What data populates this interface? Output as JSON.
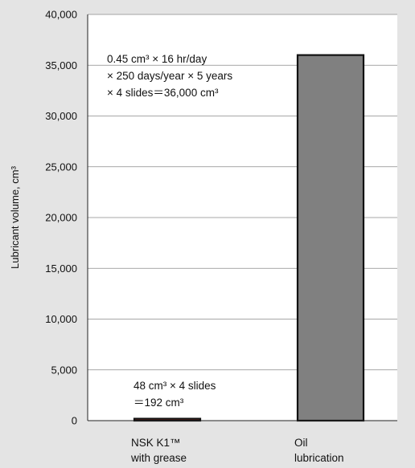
{
  "chart_data": {
    "type": "bar",
    "ylabel": "Lubricant volume, cm³",
    "ylim": [
      0,
      40000
    ],
    "yticks": [
      0,
      5000,
      10000,
      15000,
      20000,
      25000,
      30000,
      35000,
      40000
    ],
    "ytick_labels": [
      "0",
      "5,000",
      "10,000",
      "15,000",
      "20,000",
      "25,000",
      "30,000",
      "35,000",
      "40,000"
    ],
    "grid": true,
    "categories": [
      {
        "lines": [
          "NSK K1™",
          "with grease"
        ]
      },
      {
        "lines": [
          "Oil",
          "lubrication"
        ]
      }
    ],
    "values": [
      192,
      36000
    ],
    "bar_colors": [
      "#c0392b",
      "#808080"
    ],
    "annotations": [
      {
        "lines": [
          "48 cm³ × 4 slides",
          "＝192 cm³"
        ]
      },
      {
        "lines": [
          "0.45 cm³ × 16 hr/day",
          "× 250 days/year × 5 years",
          "× 4 slides＝36,000 cm³"
        ]
      }
    ]
  }
}
